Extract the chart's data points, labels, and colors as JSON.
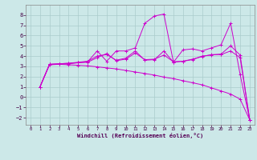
{
  "background_color": "#cce8e8",
  "grid_color": "#aacccc",
  "line_color": "#cc00cc",
  "xlabel": "Windchill (Refroidissement éolien,°C)",
  "xlim": [
    -0.5,
    23.5
  ],
  "ylim": [
    -2.7,
    9.0
  ],
  "yticks": [
    -2,
    -1,
    0,
    1,
    2,
    3,
    4,
    5,
    6,
    7,
    8
  ],
  "xticks": [
    0,
    1,
    2,
    3,
    4,
    5,
    6,
    7,
    8,
    9,
    10,
    11,
    12,
    13,
    14,
    15,
    16,
    17,
    18,
    19,
    20,
    21,
    22,
    23
  ],
  "series": [
    {
      "x": [
        1,
        2,
        3,
        4,
        5,
        6,
        7,
        8,
        9,
        10,
        11,
        12,
        13,
        14,
        15,
        16,
        17,
        18,
        19,
        20,
        21,
        22,
        23
      ],
      "y": [
        1.0,
        3.2,
        3.2,
        3.15,
        3.1,
        3.05,
        2.95,
        2.85,
        2.75,
        2.6,
        2.45,
        2.3,
        2.15,
        1.95,
        1.8,
        1.6,
        1.4,
        1.2,
        0.9,
        0.6,
        0.3,
        -0.2,
        -2.2
      ]
    },
    {
      "x": [
        1,
        2,
        3,
        4,
        5,
        6,
        7,
        8,
        9,
        10,
        11,
        12,
        13,
        14,
        15,
        16,
        17,
        18,
        19,
        20,
        21,
        22,
        23
      ],
      "y": [
        1.0,
        3.2,
        3.25,
        3.3,
        3.35,
        3.45,
        4.5,
        3.5,
        4.5,
        4.5,
        4.8,
        7.2,
        7.9,
        8.1,
        3.4,
        4.6,
        4.7,
        4.5,
        4.8,
        5.1,
        7.2,
        2.2,
        -2.2
      ]
    },
    {
      "x": [
        1,
        2,
        3,
        4,
        5,
        6,
        7,
        8,
        9,
        10,
        11,
        12,
        13,
        14,
        15,
        16,
        17,
        18,
        19,
        20,
        21,
        22,
        23
      ],
      "y": [
        1.0,
        3.2,
        3.25,
        3.3,
        3.4,
        3.5,
        4.0,
        4.15,
        3.6,
        3.8,
        4.5,
        3.6,
        3.65,
        4.5,
        3.4,
        3.5,
        3.65,
        4.0,
        4.1,
        4.2,
        5.0,
        4.1,
        -2.2
      ]
    },
    {
      "x": [
        1,
        2,
        3,
        4,
        5,
        6,
        7,
        8,
        9,
        10,
        11,
        12,
        13,
        14,
        15,
        16,
        17,
        18,
        19,
        20,
        21,
        22,
        23
      ],
      "y": [
        1.0,
        3.15,
        3.2,
        3.25,
        3.35,
        3.4,
        3.85,
        4.25,
        3.55,
        3.7,
        4.3,
        3.65,
        3.7,
        4.1,
        3.45,
        3.5,
        3.7,
        3.95,
        4.15,
        4.15,
        4.5,
        3.85,
        -2.2
      ]
    }
  ]
}
